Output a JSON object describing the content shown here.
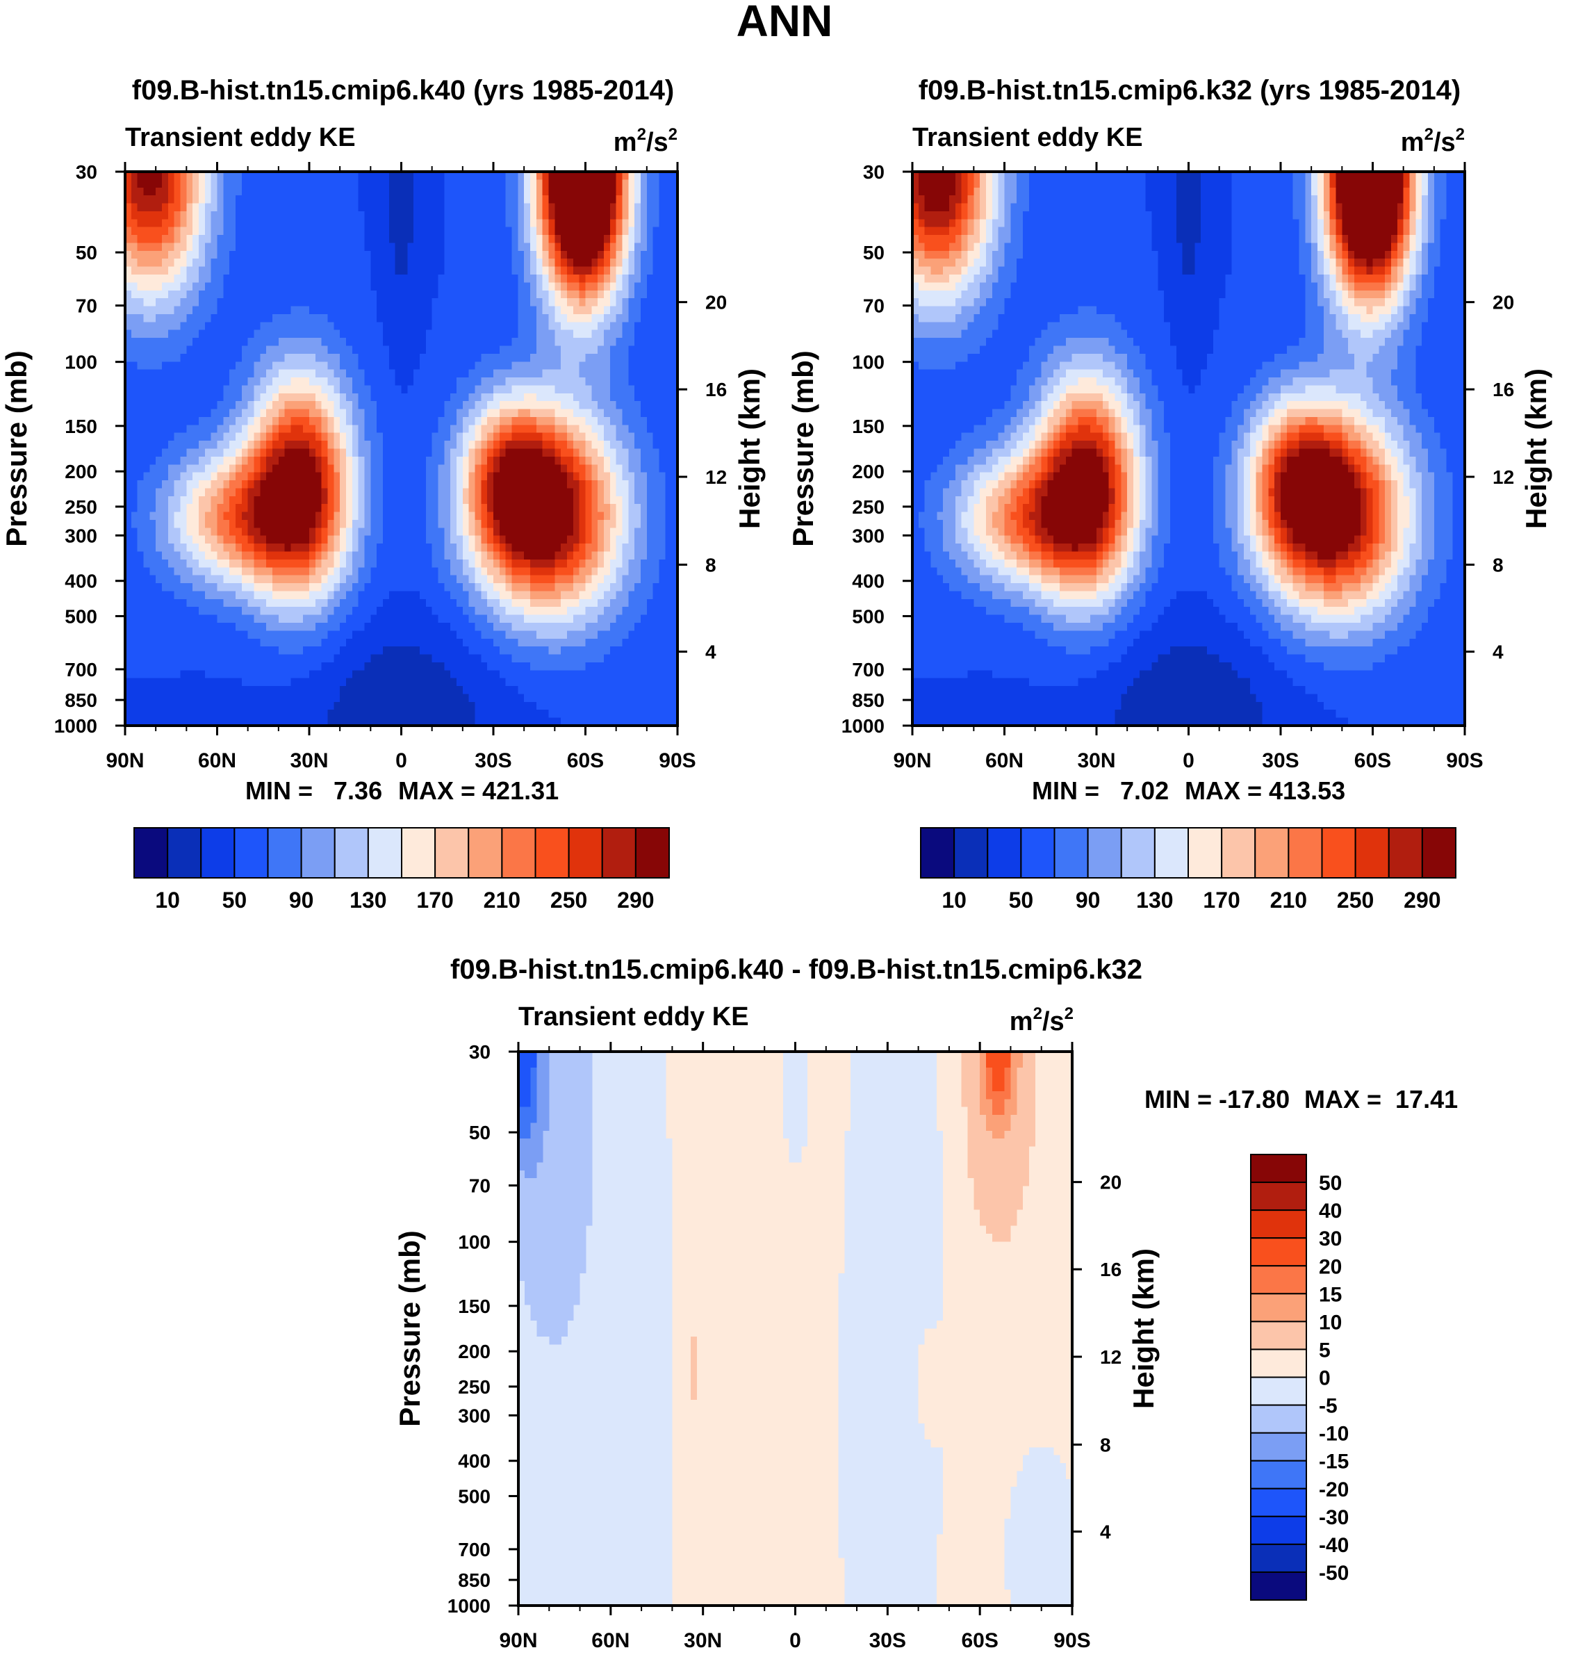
{
  "page_title": "ANN",
  "colors": {
    "abs_palette": [
      "#0a0a7e",
      "#0a2fb8",
      "#0d3de8",
      "#1e55fa",
      "#3f76f7",
      "#7b9ef4",
      "#b0c6fa",
      "#dbe7fc",
      "#feeadb",
      "#fcc5aa",
      "#fba178",
      "#fb7647",
      "#f9501d",
      "#e0330c",
      "#b11e0f",
      "#870606"
    ],
    "diff_palette": [
      "#0a0a7e",
      "#0a2fb8",
      "#0d3de8",
      "#1e55fa",
      "#3f76f7",
      "#7b9ef4",
      "#b0c6fa",
      "#dbe7fc",
      "#feeadb",
      "#fcc5aa",
      "#fba178",
      "#fb7647",
      "#f9501d",
      "#e0330c",
      "#b11e0f",
      "#870606"
    ]
  },
  "chart_data": [
    {
      "id": "panel1",
      "type": "heatmap",
      "title": "f09.B-hist.tn15.cmip6.k40 (yrs 1985-2014)",
      "subtitle_left": "Transient eddy KE",
      "units": {
        "base": "m",
        "exp1": "2",
        "mid": "/s",
        "exp2": "2"
      },
      "xlabel": "",
      "ylabel": "Pressure (mb)",
      "y2label": "Height (km)",
      "xlim": [
        90,
        -90
      ],
      "ylim": [
        1000,
        30
      ],
      "yscale": "log",
      "x_ticks": [
        {
          "v": 90,
          "label": "90N"
        },
        {
          "v": 60,
          "label": "60N"
        },
        {
          "v": 30,
          "label": "30N"
        },
        {
          "v": 0,
          "label": "0"
        },
        {
          "v": -30,
          "label": "30S"
        },
        {
          "v": -60,
          "label": "60S"
        },
        {
          "v": -90,
          "label": "90S"
        }
      ],
      "y_ticks": [
        30,
        50,
        70,
        100,
        150,
        200,
        250,
        300,
        400,
        500,
        700,
        850,
        1000
      ],
      "y2_ticks": [
        {
          "km": 4,
          "p": 626
        },
        {
          "km": 8,
          "p": 361
        },
        {
          "km": 12,
          "p": 207
        },
        {
          "km": 16,
          "p": 119
        },
        {
          "km": 20,
          "p": 68.5
        }
      ],
      "min_label": "MIN =   7.36",
      "max_label": "MAX = 421.31",
      "min": 7.36,
      "max": 421.31,
      "field": {
        "background": 50,
        "features": [
          {
            "x": -59,
            "p": 30,
            "a": 430,
            "sx": 10,
            "sl": 0.55
          },
          {
            "x": 82,
            "p": 30,
            "a": 250,
            "sx": 13,
            "sl": 0.55
          },
          {
            "x": -48,
            "p": 265,
            "a": 260,
            "sx": 17,
            "sl": 0.45
          },
          {
            "x": -35,
            "p": 205,
            "a": 120,
            "sx": 11,
            "sl": 0.35
          },
          {
            "x": 33,
            "p": 220,
            "a": 250,
            "sx": 12,
            "sl": 0.5
          },
          {
            "x": 55,
            "p": 270,
            "a": 150,
            "sx": 16,
            "sl": 0.3
          },
          {
            "x": 0,
            "p": 35,
            "a": -30,
            "sx": 4,
            "sl": 0.6
          },
          {
            "x": 0,
            "p": 900,
            "a": -35,
            "sx": 25,
            "sl": 0.4
          }
        ]
      },
      "colorbar": {
        "labels": [
          "10",
          "50",
          "90",
          "130",
          "170",
          "210",
          "250",
          "290"
        ],
        "levels": [
          0,
          10,
          30,
          50,
          70,
          90,
          110,
          130,
          150,
          170,
          190,
          210,
          230,
          250,
          270,
          290,
          310
        ]
      }
    },
    {
      "id": "panel2",
      "type": "heatmap",
      "title": "f09.B-hist.tn15.cmip6.k32 (yrs 1985-2014)",
      "subtitle_left": "Transient eddy KE",
      "units": {
        "base": "m",
        "exp1": "2",
        "mid": "/s",
        "exp2": "2"
      },
      "xlabel": "",
      "ylabel": "Pressure (mb)",
      "y2label": "Height (km)",
      "xlim": [
        90,
        -90
      ],
      "ylim": [
        1000,
        30
      ],
      "yscale": "log",
      "x_ticks": [
        {
          "v": 90,
          "label": "90N"
        },
        {
          "v": 60,
          "label": "60N"
        },
        {
          "v": 30,
          "label": "30N"
        },
        {
          "v": 0,
          "label": "0"
        },
        {
          "v": -30,
          "label": "30S"
        },
        {
          "v": -60,
          "label": "60S"
        },
        {
          "v": -90,
          "label": "90S"
        }
      ],
      "y_ticks": [
        30,
        50,
        70,
        100,
        150,
        200,
        250,
        300,
        400,
        500,
        700,
        850,
        1000
      ],
      "y2_ticks": [
        {
          "km": 4,
          "p": 626
        },
        {
          "km": 8,
          "p": 361
        },
        {
          "km": 12,
          "p": 207
        },
        {
          "km": 16,
          "p": 119
        },
        {
          "km": 20,
          "p": 68.5
        }
      ],
      "min_label": "MIN =   7.02",
      "max_label": "MAX = 413.53",
      "min": 7.02,
      "max": 413.53,
      "field": {
        "background": 50,
        "features": [
          {
            "x": -59,
            "p": 30,
            "a": 420,
            "sx": 10,
            "sl": 0.55
          },
          {
            "x": 82,
            "p": 30,
            "a": 270,
            "sx": 13,
            "sl": 0.55
          },
          {
            "x": -48,
            "p": 265,
            "a": 255,
            "sx": 17,
            "sl": 0.45
          },
          {
            "x": -35,
            "p": 205,
            "a": 120,
            "sx": 11,
            "sl": 0.35
          },
          {
            "x": 33,
            "p": 220,
            "a": 250,
            "sx": 12,
            "sl": 0.5
          },
          {
            "x": 55,
            "p": 270,
            "a": 150,
            "sx": 16,
            "sl": 0.3
          },
          {
            "x": 0,
            "p": 35,
            "a": -30,
            "sx": 4,
            "sl": 0.6
          },
          {
            "x": 0,
            "p": 900,
            "a": -35,
            "sx": 25,
            "sl": 0.4
          }
        ]
      },
      "colorbar": {
        "labels": [
          "10",
          "50",
          "90",
          "130",
          "170",
          "210",
          "250",
          "290"
        ],
        "levels": [
          0,
          10,
          30,
          50,
          70,
          90,
          110,
          130,
          150,
          170,
          190,
          210,
          230,
          250,
          270,
          290,
          310
        ]
      }
    },
    {
      "id": "diff",
      "type": "heatmap",
      "title": "f09.B-hist.tn15.cmip6.k40 - f09.B-hist.tn15.cmip6.k32",
      "subtitle_left": "Transient eddy KE",
      "units": {
        "base": "m",
        "exp1": "2",
        "mid": "/s",
        "exp2": "2"
      },
      "xlabel": "",
      "ylabel": "Pressure (mb)",
      "y2label": "Height (km)",
      "xlim": [
        90,
        -90
      ],
      "ylim": [
        1000,
        30
      ],
      "yscale": "log",
      "x_ticks": [
        {
          "v": 90,
          "label": "90N"
        },
        {
          "v": 60,
          "label": "60N"
        },
        {
          "v": 30,
          "label": "30N"
        },
        {
          "v": 0,
          "label": "0"
        },
        {
          "v": -30,
          "label": "30S"
        },
        {
          "v": -60,
          "label": "60S"
        },
        {
          "v": -90,
          "label": "90S"
        }
      ],
      "y_ticks": [
        30,
        50,
        70,
        100,
        150,
        200,
        250,
        300,
        400,
        500,
        700,
        850,
        1000
      ],
      "y2_ticks": [
        {
          "km": 4,
          "p": 626
        },
        {
          "km": 8,
          "p": 361
        },
        {
          "km": 12,
          "p": 207
        },
        {
          "km": 16,
          "p": 119
        },
        {
          "km": 20,
          "p": 68.5
        }
      ],
      "min_label": "MIN = -17.80",
      "max_label": "MAX =  17.41",
      "min": -17.8,
      "max": 17.41,
      "field": {
        "background": 1.5,
        "features": [
          {
            "x": -66,
            "p": 30,
            "a": 18,
            "sx": 4,
            "sl": 0.3
          },
          {
            "x": -66,
            "p": 40,
            "a": 6,
            "sx": 11,
            "sl": 0.9
          },
          {
            "x": 88,
            "p": 30,
            "a": -19,
            "sx": 3,
            "sl": 0.4
          },
          {
            "x": 82,
            "p": 40,
            "a": -8,
            "sx": 12,
            "sl": 1.1
          },
          {
            "x": 70,
            "p": 300,
            "a": -4,
            "sx": 22,
            "sl": 3.5
          },
          {
            "x": -42,
            "p": 60,
            "a": -4,
            "sx": 4,
            "sl": 1.2
          },
          {
            "x": -30,
            "p": 300,
            "a": -3.5,
            "sx": 12,
            "sl": 2.5
          },
          {
            "x": 0,
            "p": 40,
            "a": -3.5,
            "sx": 3,
            "sl": 0.3
          },
          {
            "x": 33,
            "p": 220,
            "a": 6,
            "sx": 2,
            "sl": 0.25
          },
          {
            "x": -43,
            "p": 235,
            "a": 6,
            "sx": 2.5,
            "sl": 0.25
          },
          {
            "x": -80,
            "p": 700,
            "a": -3,
            "sx": 10,
            "sl": 0.6
          }
        ]
      },
      "colorbar": {
        "labels": [
          "50",
          "40",
          "30",
          "20",
          "15",
          "10",
          "5",
          "0",
          "-5",
          "-10",
          "-15",
          "-20",
          "-30",
          "-40",
          "-50"
        ],
        "levels": [
          -60,
          -50,
          -40,
          -30,
          -20,
          -15,
          -10,
          -5,
          0,
          5,
          10,
          15,
          20,
          30,
          40,
          50,
          60
        ]
      }
    }
  ]
}
